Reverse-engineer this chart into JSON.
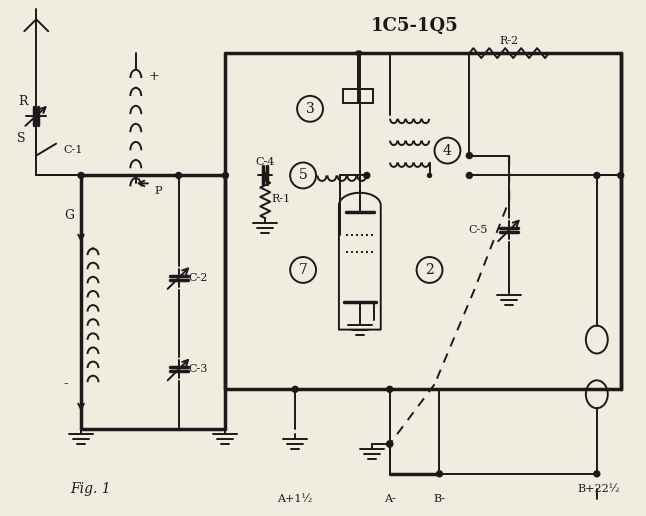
{
  "title": "1C5-1Q5",
  "background_color": "#f0ece0",
  "line_color": "#1a1a1a",
  "text_color": "#1a1a1a",
  "figsize": [
    6.46,
    5.16
  ],
  "dpi": 100,
  "labels": {
    "title": "1C5-1Q5",
    "R": "R",
    "S": "S",
    "C1": "C-1",
    "P": "P",
    "G": "G",
    "C2": "C-2",
    "C3": "C-3",
    "C4": "C-4",
    "C5": "C-5",
    "R1": "R-1",
    "R2": "R-2",
    "circle3": "3",
    "circle4": "4",
    "circle5": "5",
    "circle7": "7",
    "circle2": "2",
    "Ap1": "A+1½",
    "Am": "A-",
    "Bm": "B-",
    "Bp22": "B+22½",
    "fig1": "Fig. 1",
    "plus_top": "+",
    "minus_left": "-"
  }
}
